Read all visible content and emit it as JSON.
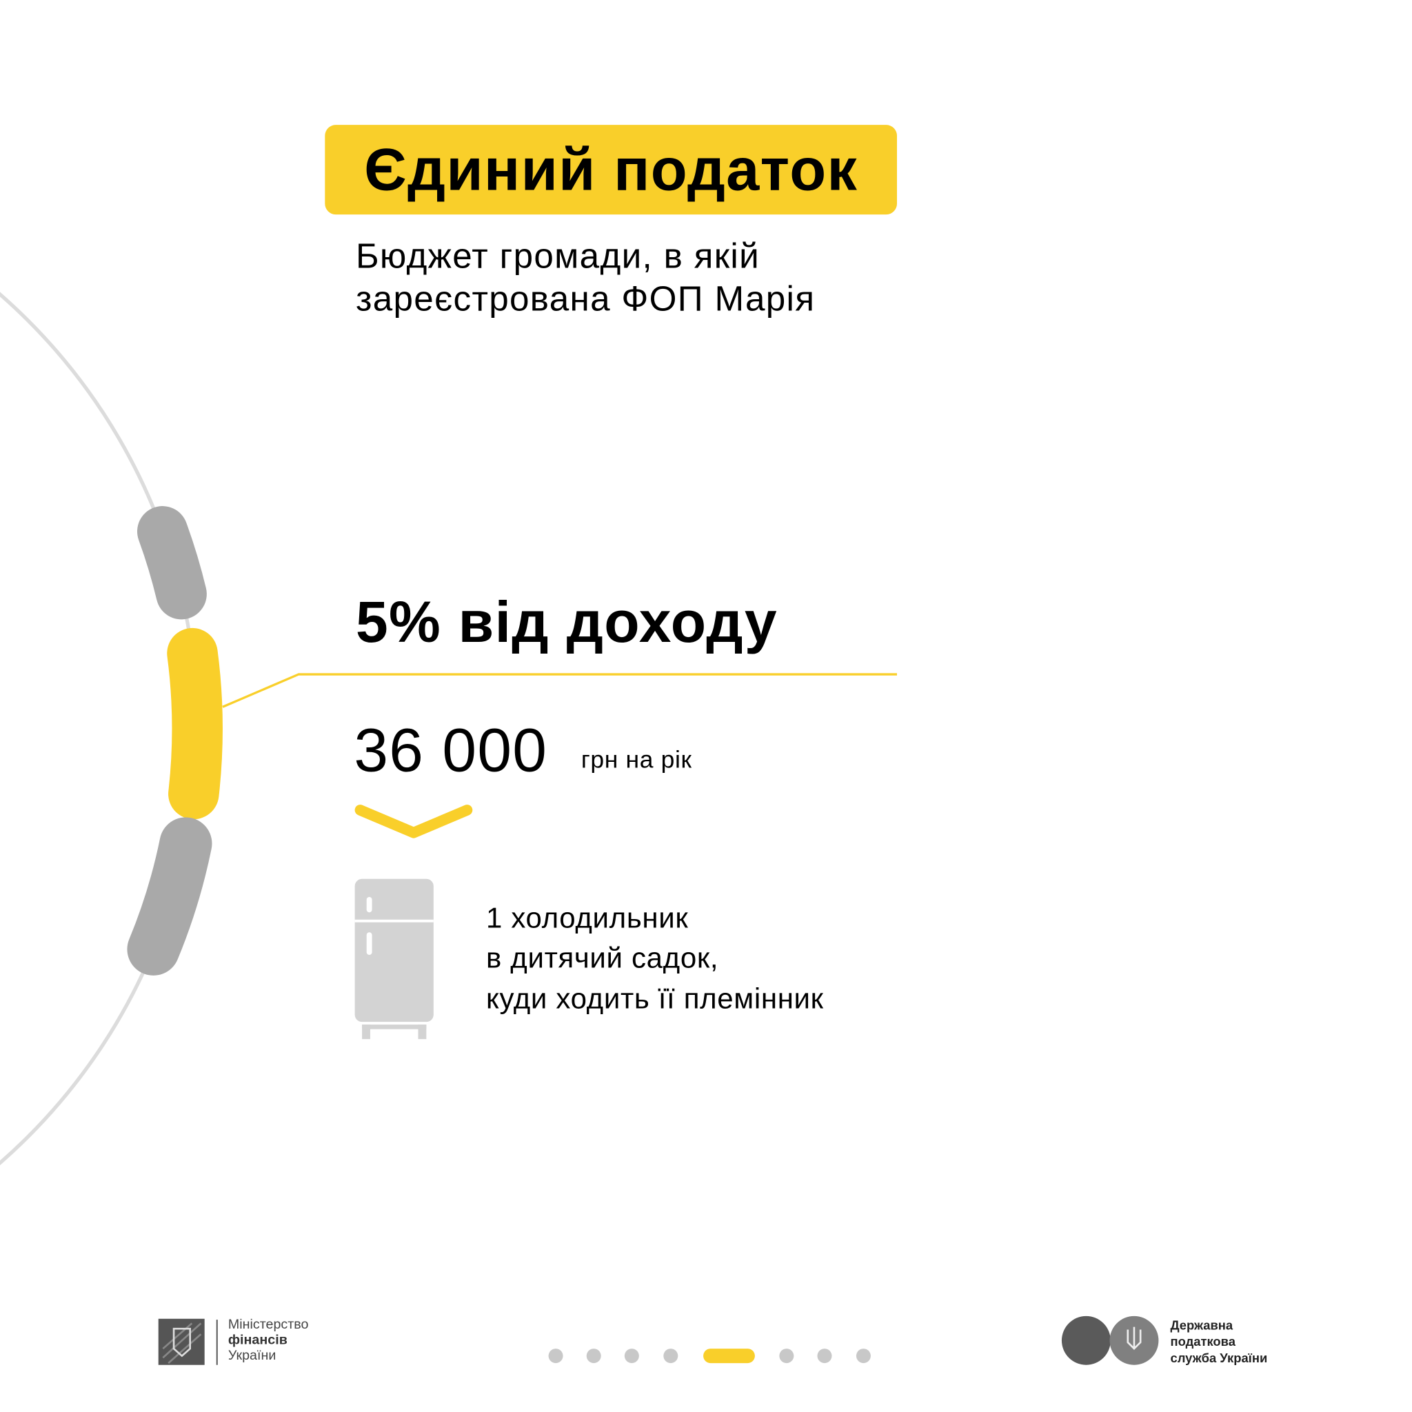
{
  "header": {
    "title": "Єдиний податок",
    "subtitle_lines": [
      "Бюджет громади, в якій",
      "зареєстрована ФОП Марія"
    ]
  },
  "main": {
    "rate": "5% від доходу",
    "amount": "36 000",
    "amount_unit": "грн на рік",
    "icon": "fridge-icon",
    "description_lines": [
      "1 холодильник",
      "в дитячий садок,",
      "куди ходить її племінник"
    ]
  },
  "footer": {
    "ministry_lines": [
      "Міністерство",
      "фінансів",
      "України"
    ],
    "tax_service_lines": [
      "Державна",
      "податкова",
      "служба України"
    ],
    "pagination": {
      "total": 8,
      "active": 5
    }
  },
  "colors": {
    "accent": "#f9cf2a",
    "segment_grey": "#a9a9a9",
    "arc": "#dcdcdc",
    "icon": "#d3d3d3"
  }
}
